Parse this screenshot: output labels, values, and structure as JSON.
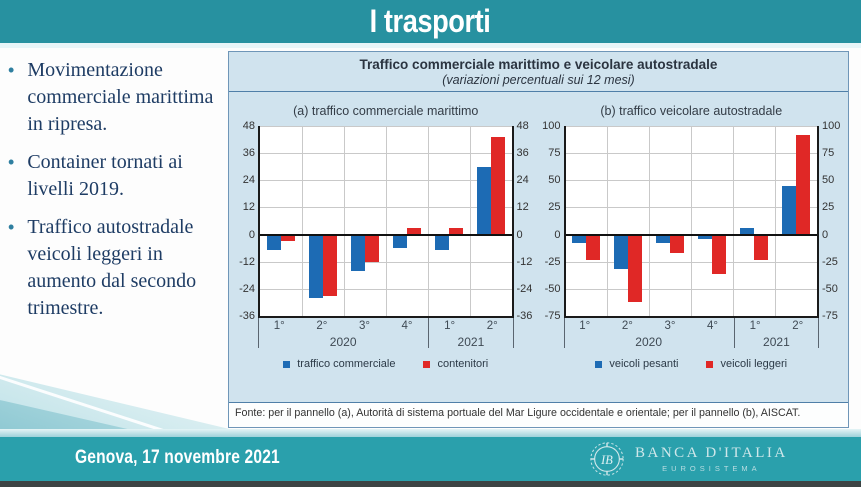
{
  "header": {
    "title": "I trasporti"
  },
  "bullets": [
    "Movimentazione commerciale marittima in ripresa.",
    "Container tornati ai livelli 2019.",
    "Traffico autostradale veicoli leggeri in aumento dal secondo trimestre."
  ],
  "figure": {
    "title": "Traffico commerciale marittimo e veicolare autostradale",
    "subtitle": "(variazioni percentuali sui 12 mesi)",
    "source": "Fonte: per il pannello (a), Autorità di sistema portuale del Mar Ligure occidentale e orientale; per il pannello (b), AISCAT."
  },
  "chart_data": [
    {
      "type": "bar",
      "title": "(a) traffico commerciale marittimo",
      "categories": [
        "1°",
        "2°",
        "3°",
        "4°",
        "1°",
        "2°"
      ],
      "group_labels": [
        "2020",
        "2021"
      ],
      "groups": [
        4,
        2
      ],
      "series": [
        {
          "name": "traffico commerciale",
          "color": "#1d6bb4",
          "values": [
            -7,
            -28,
            -16,
            -6,
            -7,
            30
          ]
        },
        {
          "name": "contenitori",
          "color": "#e02826",
          "values": [
            -3,
            -27,
            -12,
            3,
            3,
            43
          ]
        }
      ],
      "ylim": [
        -36,
        48
      ],
      "ystep": 12,
      "grid": true,
      "legend_position": "bottom",
      "yaxis_sides": "both"
    },
    {
      "type": "bar",
      "title": "(b) traffico veicolare autostradale",
      "categories": [
        "1°",
        "2°",
        "3°",
        "4°",
        "1°",
        "2°"
      ],
      "group_labels": [
        "2020",
        "2021"
      ],
      "groups": [
        4,
        2
      ],
      "series": [
        {
          "name": "veicoli pesanti",
          "color": "#1d6bb4",
          "values": [
            -8,
            -32,
            -8,
            -4,
            6,
            45
          ]
        },
        {
          "name": "veicoli leggeri",
          "color": "#e02826",
          "values": [
            -23,
            -62,
            -17,
            -36,
            -23,
            92
          ]
        }
      ],
      "ylim": [
        -75,
        100
      ],
      "ystep": 25,
      "grid": true,
      "legend_position": "bottom",
      "yaxis_sides": "both"
    }
  ],
  "footer": {
    "date": "Genova, 17 novembre 2021",
    "logo_text": "BANCA D'ITALIA",
    "logo_subtext": "EUROSISTEMA",
    "logo_monogram": "IB"
  },
  "colors": {
    "header_teal": "#2791a0",
    "footer_teal": "#2aa0ac",
    "panel_bg": "#d0e3ee",
    "panel_border": "#4f7fa8",
    "bar_blue": "#1d6bb4",
    "bar_red": "#e02826",
    "bullet_navy": "#1e3c64"
  }
}
